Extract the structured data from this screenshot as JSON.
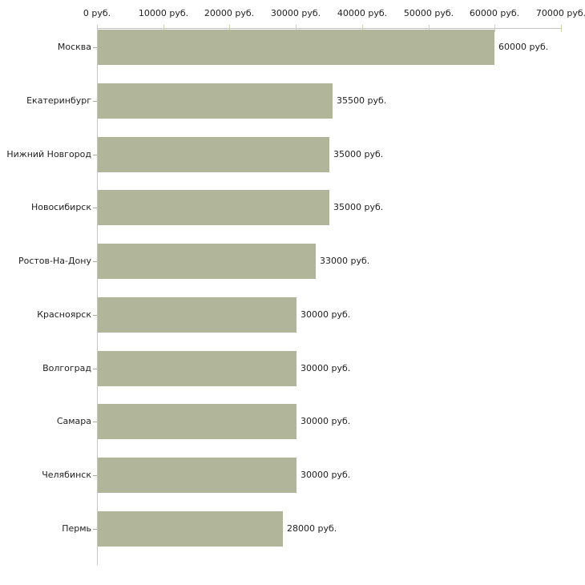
{
  "chart_data": {
    "type": "bar",
    "orientation": "horizontal",
    "title": "",
    "xlabel": "",
    "ylabel": "",
    "categories": [
      "Москва",
      "Екатеринбург",
      "Нижний Новгород",
      "Новосибирск",
      "Ростов-На-Дону",
      "Красноярск",
      "Волгоград",
      "Самара",
      "Челябинск",
      "Пермь"
    ],
    "values": [
      60000,
      35500,
      35000,
      35000,
      33000,
      30000,
      30000,
      30000,
      30000,
      28000
    ],
    "value_labels": [
      "60000 руб.",
      "35500 руб.",
      "35000 руб.",
      "35000 руб.",
      "33000 руб.",
      "30000 руб.",
      "30000 руб.",
      "30000 руб.",
      "30000 руб.",
      "28000 руб."
    ],
    "xlim": [
      0,
      70000
    ],
    "x_ticks": [
      0,
      10000,
      20000,
      30000,
      40000,
      50000,
      60000,
      70000
    ],
    "x_tick_labels": [
      "0 руб.",
      "10000 руб.",
      "20000 руб.",
      "30000 руб.",
      "40000 руб.",
      "50000 руб.",
      "60000 руб.",
      "70000 руб."
    ],
    "grid": false,
    "legend": null,
    "colors": {
      "bar": "#b1b69b",
      "axis": "#c5c5c5",
      "x_tick": "#cdd1ab",
      "y_tick": "#a9ac9a",
      "text": "#1f1f1f",
      "background": "#ffffff"
    }
  }
}
